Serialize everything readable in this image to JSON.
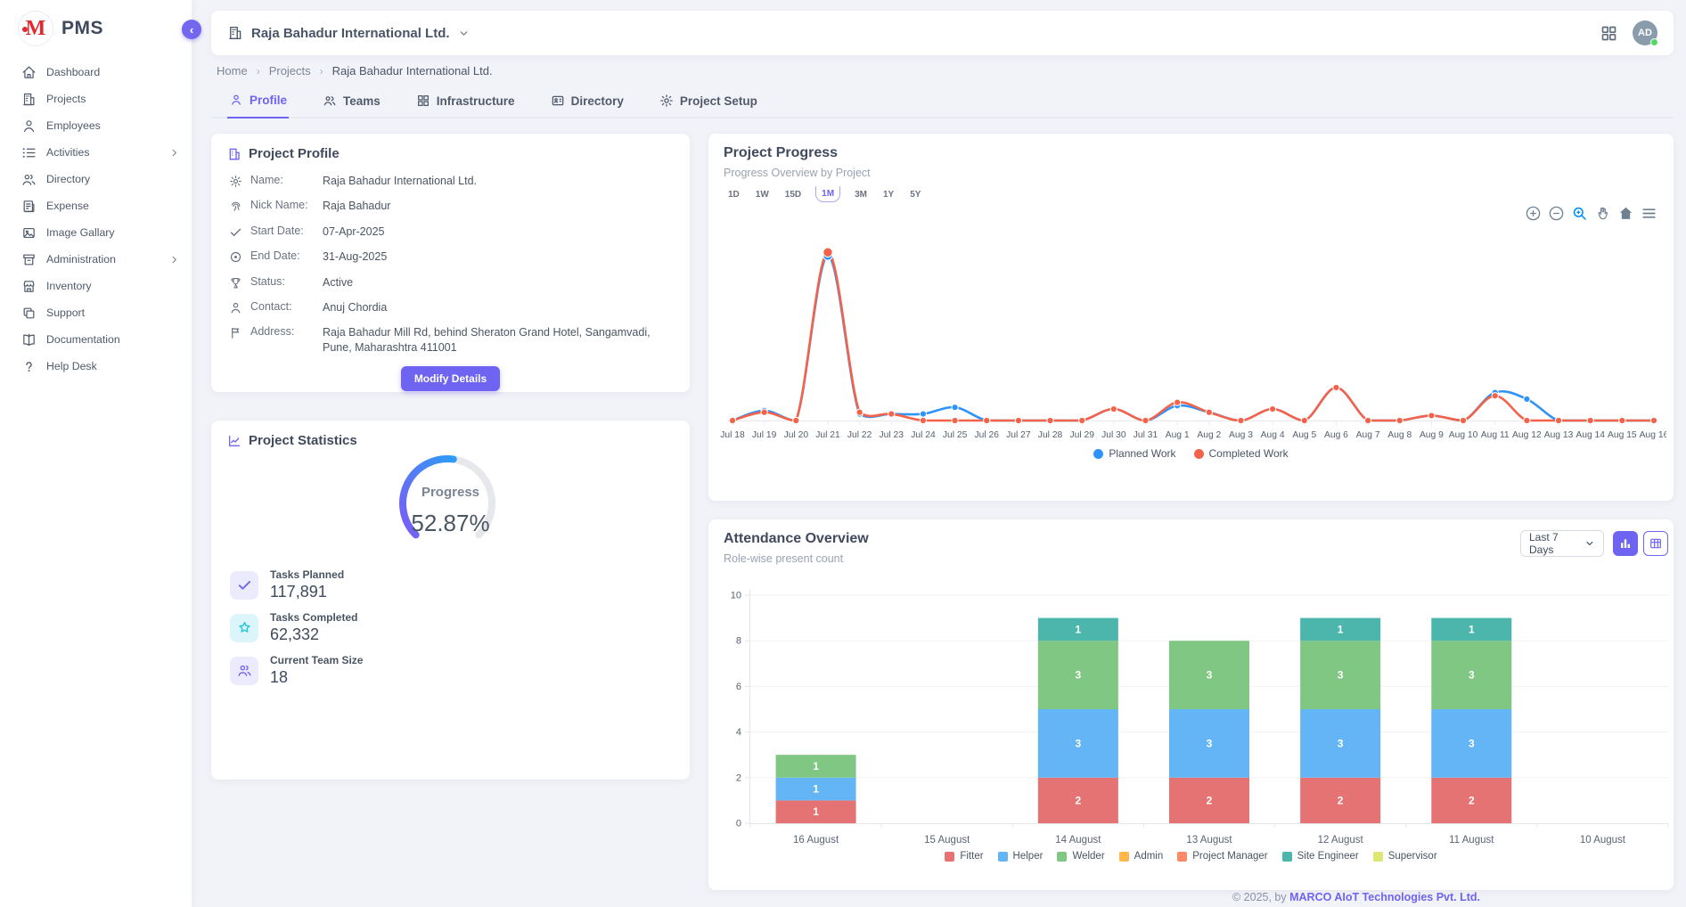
{
  "app": {
    "name": "PMS",
    "accent_color": "#6F63F2"
  },
  "sidebar": {
    "items": [
      {
        "label": "Dashboard",
        "icon": "home-icon"
      },
      {
        "label": "Projects",
        "icon": "building-icon"
      },
      {
        "label": "Employees",
        "icon": "user-icon"
      },
      {
        "label": "Activities",
        "icon": "list-icon",
        "has_submenu": true
      },
      {
        "label": "Directory",
        "icon": "users-icon"
      },
      {
        "label": "Expense",
        "icon": "receipt-icon"
      },
      {
        "label": "Image Gallary",
        "icon": "image-icon"
      },
      {
        "label": "Administration",
        "icon": "archive-icon",
        "has_submenu": true
      },
      {
        "label": "Inventory",
        "icon": "store-icon"
      },
      {
        "label": "Support",
        "icon": "copy-icon"
      },
      {
        "label": "Documentation",
        "icon": "book-icon"
      },
      {
        "label": "Help Desk",
        "icon": "question-icon"
      }
    ]
  },
  "header": {
    "company": "Raja Bahadur International Ltd.",
    "avatar_initials": "AD",
    "online": true
  },
  "breadcrumb": {
    "items": [
      "Home",
      "Projects",
      "Raja Bahadur International Ltd."
    ]
  },
  "tabs": [
    {
      "label": "Profile",
      "icon": "person-icon",
      "active": true
    },
    {
      "label": "Teams",
      "icon": "people-icon",
      "active": false
    },
    {
      "label": "Infrastructure",
      "icon": "grid-icon",
      "active": false
    },
    {
      "label": "Directory",
      "icon": "contact-card-icon",
      "active": false
    },
    {
      "label": "Project Setup",
      "icon": "gear-icon",
      "active": false
    }
  ],
  "profile_card": {
    "title": "Project Profile",
    "fields": [
      {
        "label": "Name:",
        "value": "Raja Bahadur International Ltd.",
        "icon": "gear-icon"
      },
      {
        "label": "Nick Name:",
        "value": "Raja Bahadur",
        "icon": "fingerprint-icon"
      },
      {
        "label": "Start Date:",
        "value": "07-Apr-2025",
        "icon": "check-icon"
      },
      {
        "label": "End Date:",
        "value": "31-Aug-2025",
        "icon": "record-icon"
      },
      {
        "label": "Status:",
        "value": "Active",
        "icon": "trophy-icon"
      },
      {
        "label": "Contact:",
        "value": "Anuj Chordia",
        "icon": "person-icon"
      },
      {
        "label": "Address:",
        "value": "Raja Bahadur Mill Rd, behind Sheraton Grand Hotel, Sangamvadi, Pune, Maharashtra 411001",
        "icon": "flag-icon"
      }
    ],
    "modify_button": "Modify Details"
  },
  "stats_card": {
    "title": "Project Statistics",
    "gauge": {
      "label": "Progress",
      "value_text": "52.87%",
      "value": 52.87,
      "track_color": "#E6E8EC",
      "gradient": [
        "#7A5CF6",
        "#2E9BF5"
      ]
    },
    "stats": [
      {
        "label": "Tasks Planned",
        "value": "117,891",
        "icon": "check-icon",
        "box_color": "#ECEAFD",
        "icon_color": "#6F63F2"
      },
      {
        "label": "Tasks Completed",
        "value": "62,332",
        "icon": "star-icon",
        "box_color": "#DCF5FA",
        "icon_color": "#21C3E0"
      },
      {
        "label": "Current Team Size",
        "value": "18",
        "icon": "team-icon",
        "box_color": "#ECEAFD",
        "icon_color": "#6F63F2"
      }
    ]
  },
  "progress_toolbar": [
    "zoom-in",
    "zoom-out",
    "selection-zoom",
    "pan",
    "reset-home",
    "menu"
  ],
  "chart_data": [
    {
      "type": "line",
      "title": "Project Progress",
      "subtitle": "Progress Overview by Project",
      "ranges": [
        "1D",
        "1W",
        "15D",
        "1M",
        "3M",
        "1Y",
        "5Y"
      ],
      "active_range": "1M",
      "x": [
        "Jul 18",
        "Jul 19",
        "Jul 20",
        "Jul 21",
        "Jul 22",
        "Jul 23",
        "Jul 24",
        "Jul 25",
        "Jul 26",
        "Jul 27",
        "Jul 28",
        "Jul 29",
        "Jul 30",
        "Jul 31",
        "Aug 1",
        "Aug 2",
        "Aug 3",
        "Aug 4",
        "Aug 5",
        "Aug 6",
        "Aug 7",
        "Aug 8",
        "Aug 9",
        "Aug 10",
        "Aug 11",
        "Aug 12",
        "Aug 13",
        "Aug 14",
        "Aug 15",
        "Aug 16"
      ],
      "series": [
        {
          "name": "Planned Work",
          "color": "#2E93FA",
          "values": [
            0,
            6,
            0,
            100,
            4,
            4,
            4,
            8,
            0,
            0,
            0,
            0,
            7,
            0,
            9,
            5,
            0,
            7,
            0,
            20,
            0,
            0,
            3,
            0,
            17,
            13,
            0,
            0,
            0,
            0
          ]
        },
        {
          "name": "Completed Work",
          "color": "#F4624A",
          "values": [
            0,
            5,
            0,
            102,
            5,
            4,
            0,
            0,
            0,
            0,
            0,
            0,
            7,
            0,
            11,
            5,
            0,
            7,
            0,
            20,
            0,
            0,
            3,
            0,
            15,
            0,
            0,
            0,
            0,
            0
          ]
        }
      ],
      "ylim": [
        0,
        107
      ],
      "grid": false,
      "legend_position": "bottom"
    },
    {
      "type": "bar",
      "stacked": true,
      "title": "Attendance Overview",
      "subtitle": "Role-wise present count",
      "filter": "Last 7 Days",
      "categories": [
        "16 August",
        "15 August",
        "14 August",
        "13 August",
        "12 August",
        "11 August",
        "10 August"
      ],
      "series": [
        {
          "name": "Fitter",
          "color": "#E57373",
          "values": [
            1,
            0,
            2,
            2,
            2,
            2,
            0
          ]
        },
        {
          "name": "Helper",
          "color": "#64B5F6",
          "values": [
            1,
            0,
            3,
            3,
            3,
            3,
            0
          ]
        },
        {
          "name": "Welder",
          "color": "#81C784",
          "values": [
            1,
            0,
            3,
            3,
            3,
            3,
            0
          ]
        },
        {
          "name": "Admin",
          "color": "#FFB74D",
          "values": [
            0,
            0,
            0,
            0,
            0,
            0,
            0
          ]
        },
        {
          "name": "Project Manager",
          "color": "#FF8A65",
          "values": [
            0,
            0,
            0,
            0,
            0,
            0,
            0
          ]
        },
        {
          "name": "Site Engineer",
          "color": "#4DB6AC",
          "values": [
            0,
            0,
            1,
            0,
            1,
            1,
            0
          ]
        },
        {
          "name": "Supervisor",
          "color": "#DCE775",
          "values": [
            0,
            0,
            0,
            0,
            0,
            0,
            0
          ]
        }
      ],
      "ylim": [
        0,
        10
      ],
      "yticks": [
        0,
        2,
        4,
        6,
        8,
        10
      ],
      "legend_position": "bottom"
    }
  ],
  "footer": {
    "prefix": "© 2025, by ",
    "company": "MARCO AIoT Technologies Pvt. Ltd."
  }
}
